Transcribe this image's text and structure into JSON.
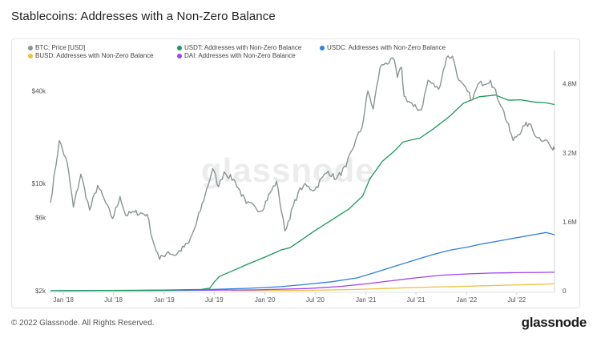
{
  "title": "Stablecoins: Addresses with a Non-Zero Balance",
  "watermark": "glassnode",
  "footer": {
    "copyright": "© 2022 Glassnode. All Rights Reserved.",
    "logo": "glassnode"
  },
  "legend": [
    {
      "label": "BTC: Price [USD]",
      "color": "#8a9495"
    },
    {
      "label": "USDT: Addresses with Non-Zero Balance",
      "color": "#1a9a5a"
    },
    {
      "label": "USDC: Addresses with Non-Zero Balance",
      "color": "#2f7fe0"
    },
    {
      "label": "BUSD: Addresses with Non-Zero Balance",
      "color": "#f0c040"
    },
    {
      "label": "DAI: Addresses with Non-Zero Balance",
      "color": "#a043f0"
    }
  ],
  "chart_data": {
    "type": "line",
    "title": "Stablecoins: Addresses with a Non-Zero Balance",
    "x_range": [
      "2017-11-15",
      "2022-11-15"
    ],
    "x_ticks": [
      "Jan '18",
      "Jul '18",
      "Jan '19",
      "Jul '19",
      "Jan '20",
      "Jul '20",
      "Jan '21",
      "Jul '21",
      "Jan '22",
      "Jul '22"
    ],
    "y_left": {
      "scale": "log",
      "ticks": [
        "$2k",
        "$6k",
        "$10k",
        "$40k"
      ],
      "range": [
        2000,
        70000
      ]
    },
    "y_right": {
      "scale": "linear",
      "ticks": [
        "0",
        "1.6M",
        "3.2M",
        "4.8M"
      ],
      "range": [
        0,
        5500000
      ]
    },
    "grid": false,
    "legend_position": "top-left",
    "colors": {
      "btc": "#8a9495",
      "usdt": "#1a9a5a",
      "usdc": "#2f7fe0",
      "busd": "#f0c040",
      "dai": "#a043f0"
    },
    "series": [
      {
        "name": "BTC: Price [USD]",
        "axis": "left",
        "color": "#8a9495",
        "points": [
          [
            "2017-11-15",
            7500
          ],
          [
            "2017-12-17",
            19000
          ],
          [
            "2018-01-15",
            13500
          ],
          [
            "2018-02-06",
            7000
          ],
          [
            "2018-03-05",
            11500
          ],
          [
            "2018-04-06",
            6700
          ],
          [
            "2018-05-05",
            9700
          ],
          [
            "2018-06-28",
            5900
          ],
          [
            "2018-07-25",
            8200
          ],
          [
            "2018-08-14",
            6200
          ],
          [
            "2018-09-15",
            6500
          ],
          [
            "2018-10-31",
            6300
          ],
          [
            "2018-11-20",
            4300
          ],
          [
            "2018-12-15",
            3200
          ],
          [
            "2019-01-15",
            3600
          ],
          [
            "2019-02-08",
            3400
          ],
          [
            "2019-03-31",
            4100
          ],
          [
            "2019-04-25",
            5300
          ],
          [
            "2019-05-30",
            8500
          ],
          [
            "2019-06-26",
            12500
          ],
          [
            "2019-07-17",
            9500
          ],
          [
            "2019-08-06",
            11900
          ],
          [
            "2019-09-15",
            10300
          ],
          [
            "2019-10-25",
            7400
          ],
          [
            "2019-11-25",
            7100
          ],
          [
            "2019-12-18",
            6600
          ],
          [
            "2020-01-20",
            8700
          ],
          [
            "2020-02-12",
            10300
          ],
          [
            "2020-03-13",
            4900
          ],
          [
            "2020-04-30",
            8700
          ],
          [
            "2020-05-20",
            9700
          ],
          [
            "2020-06-30",
            9100
          ],
          [
            "2020-07-28",
            11000
          ],
          [
            "2020-08-17",
            12000
          ],
          [
            "2020-09-15",
            10700
          ],
          [
            "2020-10-21",
            12900
          ],
          [
            "2020-11-24",
            19000
          ],
          [
            "2020-12-17",
            23000
          ],
          [
            "2021-01-08",
            40000
          ],
          [
            "2021-01-27",
            30500
          ],
          [
            "2021-02-21",
            57000
          ],
          [
            "2021-03-13",
            61000
          ],
          [
            "2021-04-14",
            63500
          ],
          [
            "2021-04-25",
            49000
          ],
          [
            "2021-05-10",
            57000
          ],
          [
            "2021-05-19",
            37000
          ],
          [
            "2021-06-22",
            31700
          ],
          [
            "2021-07-20",
            30000
          ],
          [
            "2021-08-14",
            47000
          ],
          [
            "2021-09-21",
            41000
          ],
          [
            "2021-10-20",
            66000
          ],
          [
            "2021-11-10",
            67500
          ],
          [
            "2021-12-04",
            47000
          ],
          [
            "2022-01-22",
            35000
          ],
          [
            "2022-02-10",
            44000
          ],
          [
            "2022-03-28",
            47000
          ],
          [
            "2022-05-10",
            31000
          ],
          [
            "2022-06-18",
            19000
          ],
          [
            "2022-07-30",
            23800
          ],
          [
            "2022-08-14",
            24500
          ],
          [
            "2022-09-15",
            19800
          ],
          [
            "2022-10-15",
            19300
          ],
          [
            "2022-11-09",
            16500
          ],
          [
            "2022-11-15",
            16700
          ]
        ]
      },
      {
        "name": "USDT: Addresses with Non-Zero Balance",
        "axis": "right",
        "color": "#1a9a5a",
        "points": [
          [
            "2017-11-15",
            2000
          ],
          [
            "2018-06-01",
            8000
          ],
          [
            "2019-01-01",
            15000
          ],
          [
            "2019-05-15",
            30000
          ],
          [
            "2019-06-15",
            60000
          ],
          [
            "2019-07-01",
            200000
          ],
          [
            "2019-07-20",
            330000
          ],
          [
            "2019-09-01",
            450000
          ],
          [
            "2019-11-01",
            620000
          ],
          [
            "2020-01-01",
            780000
          ],
          [
            "2020-03-01",
            950000
          ],
          [
            "2020-04-01",
            1000000
          ],
          [
            "2020-05-01",
            1130000
          ],
          [
            "2020-07-01",
            1400000
          ],
          [
            "2020-09-01",
            1650000
          ],
          [
            "2020-11-01",
            1900000
          ],
          [
            "2020-12-20",
            2200000
          ],
          [
            "2021-01-15",
            2600000
          ],
          [
            "2021-03-01",
            3000000
          ],
          [
            "2021-04-15",
            3250000
          ],
          [
            "2021-05-15",
            3450000
          ],
          [
            "2021-06-15",
            3500000
          ],
          [
            "2021-07-15",
            3540000
          ],
          [
            "2021-09-01",
            3750000
          ],
          [
            "2021-11-01",
            4050000
          ],
          [
            "2021-12-20",
            4350000
          ],
          [
            "2022-02-15",
            4500000
          ],
          [
            "2022-04-15",
            4540000
          ],
          [
            "2022-06-01",
            4420000
          ],
          [
            "2022-07-15",
            4430000
          ],
          [
            "2022-09-01",
            4380000
          ],
          [
            "2022-10-15",
            4360000
          ],
          [
            "2022-11-15",
            4320000
          ]
        ]
      },
      {
        "name": "USDC: Addresses with Non-Zero Balance",
        "axis": "right",
        "color": "#2f7fe0",
        "points": [
          [
            "2017-11-15",
            0
          ],
          [
            "2018-10-01",
            5000
          ],
          [
            "2019-05-01",
            20000
          ],
          [
            "2019-11-01",
            55000
          ],
          [
            "2020-03-01",
            95000
          ],
          [
            "2020-06-01",
            150000
          ],
          [
            "2020-09-01",
            210000
          ],
          [
            "2020-12-01",
            300000
          ],
          [
            "2021-02-01",
            420000
          ],
          [
            "2021-05-01",
            600000
          ],
          [
            "2021-07-01",
            720000
          ],
          [
            "2021-09-01",
            840000
          ],
          [
            "2021-11-01",
            940000
          ],
          [
            "2022-01-01",
            1010000
          ],
          [
            "2022-03-01",
            1090000
          ],
          [
            "2022-05-01",
            1160000
          ],
          [
            "2022-07-01",
            1230000
          ],
          [
            "2022-09-01",
            1300000
          ],
          [
            "2022-10-15",
            1350000
          ],
          [
            "2022-11-15",
            1300000
          ]
        ]
      },
      {
        "name": "BUSD: Addresses with Non-Zero Balance",
        "axis": "right",
        "color": "#f0c040",
        "points": [
          [
            "2019-09-01",
            0
          ],
          [
            "2020-06-01",
            10000
          ],
          [
            "2020-12-01",
            30000
          ],
          [
            "2021-03-01",
            50000
          ],
          [
            "2021-06-01",
            70000
          ],
          [
            "2021-09-01",
            85000
          ],
          [
            "2021-12-01",
            100000
          ],
          [
            "2022-03-01",
            115000
          ],
          [
            "2022-06-01",
            130000
          ],
          [
            "2022-09-01",
            145000
          ],
          [
            "2022-11-15",
            160000
          ]
        ]
      },
      {
        "name": "DAI: Addresses with Non-Zero Balance",
        "axis": "right",
        "color": "#a043f0",
        "points": [
          [
            "2017-12-15",
            0
          ],
          [
            "2019-01-01",
            5000
          ],
          [
            "2019-12-01",
            20000
          ],
          [
            "2020-06-01",
            50000
          ],
          [
            "2020-10-01",
            100000
          ],
          [
            "2021-01-01",
            160000
          ],
          [
            "2021-04-01",
            230000
          ],
          [
            "2021-07-01",
            300000
          ],
          [
            "2021-10-01",
            360000
          ],
          [
            "2022-01-01",
            390000
          ],
          [
            "2022-04-01",
            410000
          ],
          [
            "2022-07-01",
            420000
          ],
          [
            "2022-10-01",
            425000
          ],
          [
            "2022-11-15",
            430000
          ]
        ]
      }
    ]
  }
}
